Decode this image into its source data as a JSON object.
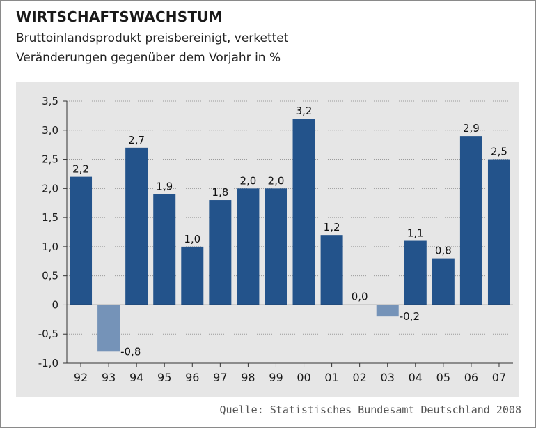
{
  "header": {
    "title": "WIRTSCHAFTSWACHSTUM",
    "subtitle_line1": "Bruttoinlandsprodukt preisbereinigt, verkettet",
    "subtitle_line2": "Veränderungen gegenüber dem Vorjahr in %"
  },
  "footer": {
    "source": "Quelle: Statistisches Bundesamt Deutschland 2008"
  },
  "colors": {
    "positive_bar": "#23538b",
    "negative_bar": "#7593b8",
    "plot_background": "#e6e6e6"
  },
  "chart_data": {
    "type": "bar",
    "categories": [
      "92",
      "93",
      "94",
      "95",
      "96",
      "97",
      "98",
      "99",
      "00",
      "01",
      "02",
      "03",
      "04",
      "05",
      "06",
      "07"
    ],
    "values": [
      2.2,
      -0.8,
      2.7,
      1.9,
      1.0,
      1.8,
      2.0,
      2.0,
      3.2,
      1.2,
      0.0,
      -0.2,
      1.1,
      0.8,
      2.9,
      2.5
    ],
    "value_labels": [
      "2,2",
      "-0,8",
      "2,7",
      "1,9",
      "1,0",
      "1,8",
      "2,0",
      "2,0",
      "3,2",
      "1,2",
      "0,0",
      "-0,2",
      "1,1",
      "0,8",
      "2,9",
      "2,5"
    ],
    "yticks": [
      -1.0,
      -0.5,
      0,
      0.5,
      1.0,
      1.5,
      2.0,
      2.5,
      3.0,
      3.5
    ],
    "ytick_labels": [
      "-1,0",
      "-0,5",
      "0",
      "0,5",
      "1,0",
      "1,5",
      "2,0",
      "2,5",
      "3,0",
      "3,5"
    ],
    "ylim": [
      -1.0,
      3.5
    ],
    "grid": true
  }
}
